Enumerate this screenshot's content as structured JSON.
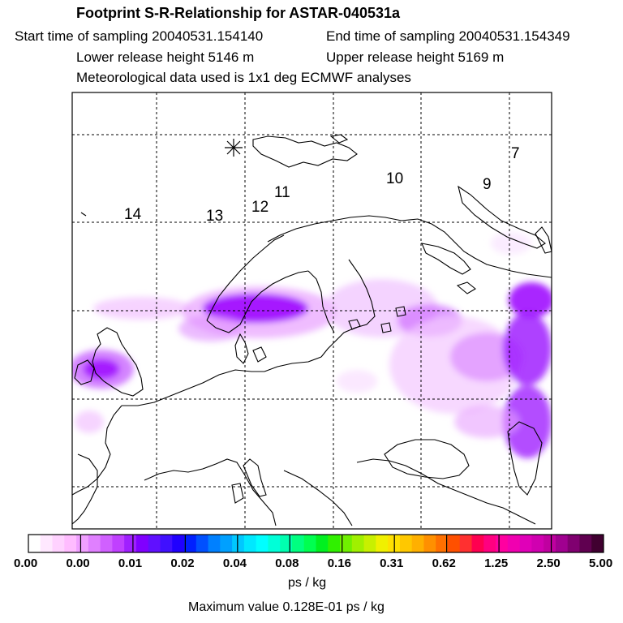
{
  "header": {
    "title": "Footprint S-R-Relationship for ASTAR-040531a",
    "start_label": "Start time of sampling 20040531.154140",
    "end_label": "End time of sampling 20040531.154349",
    "lower_label": "Lower release height 5146 m",
    "upper_label": "Upper release height 5169 m",
    "met_label": "Meteorological data used is 1x1 deg ECMWF analyses"
  },
  "map": {
    "track_labels": [
      "14",
      "13",
      "12",
      "11",
      "10",
      "9",
      "7"
    ],
    "footprint_color": "#9a00ff"
  },
  "colorbar": {
    "tick_labels": [
      "0.00",
      "0.00",
      "0.01",
      "0.02",
      "0.04",
      "0.08",
      "0.16",
      "0.31",
      "0.62",
      "1.25",
      "2.50",
      "5.00"
    ],
    "colors": [
      "#ffffff",
      "#ffe8ff",
      "#ffd2ff",
      "#ffbcff",
      "#f0a0ff",
      "#e080ff",
      "#d060ff",
      "#c040ff",
      "#a020ff",
      "#8000ff",
      "#6010ff",
      "#4010ff",
      "#2000ff",
      "#0020ff",
      "#0050ff",
      "#0080ff",
      "#00a0ff",
      "#00c8ff",
      "#00e8ff",
      "#00ffff",
      "#00ffd8",
      "#00ffb0",
      "#00ff80",
      "#00ff50",
      "#00f020",
      "#30f000",
      "#70f000",
      "#a0f000",
      "#c8f000",
      "#f0f000",
      "#ffe000",
      "#ffc800",
      "#ffb000",
      "#ff9000",
      "#ff7000",
      "#ff5000",
      "#ff3030",
      "#ff0050",
      "#ff0080",
      "#ff00a0",
      "#f000b0",
      "#e000b8",
      "#d000b0",
      "#c000a0",
      "#a00090",
      "#800070",
      "#600050",
      "#400030"
    ],
    "unit": "ps / kg",
    "max_label": "Maximum value  0.128E-01 ps / kg"
  }
}
